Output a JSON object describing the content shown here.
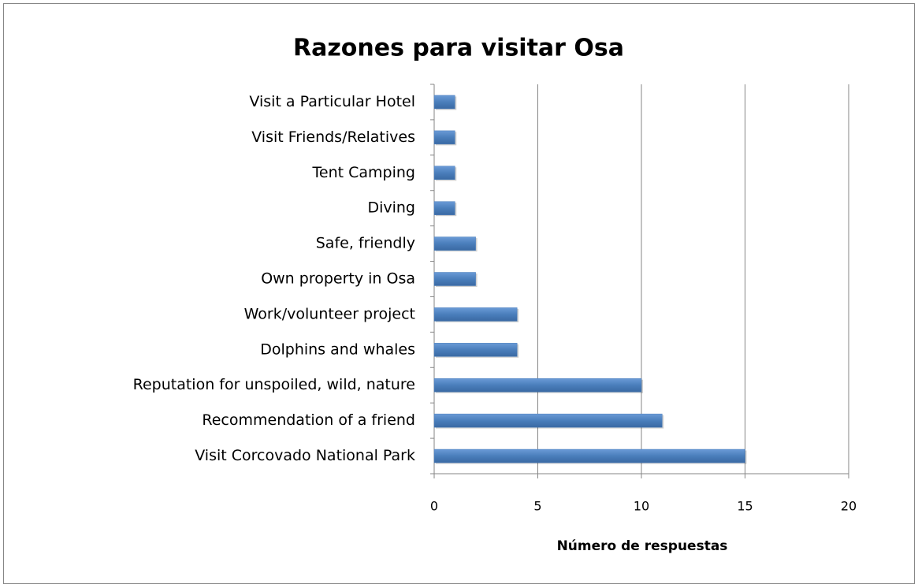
{
  "chart_data": {
    "type": "bar",
    "orientation": "horizontal",
    "title": "Razones para visitar Osa",
    "x_label": "Número de respuestas",
    "categories": [
      "Visit a Particular Hotel",
      "Visit Friends/Relatives",
      "Tent Camping",
      "Diving",
      "Safe, friendly",
      "Own property in Osa",
      "Work/volunteer project",
      "Dolphins and whales",
      "Reputation for unspoiled, wild, nature",
      "Recommendation of a friend",
      "Visit Corcovado National Park"
    ],
    "values": [
      1,
      1,
      1,
      1,
      2,
      2,
      4,
      4,
      10,
      11,
      15
    ],
    "color": "#4a7ebb",
    "xlim": [
      0,
      20
    ],
    "xticks": [
      0,
      5,
      10,
      15,
      20
    ],
    "grid": true
  }
}
